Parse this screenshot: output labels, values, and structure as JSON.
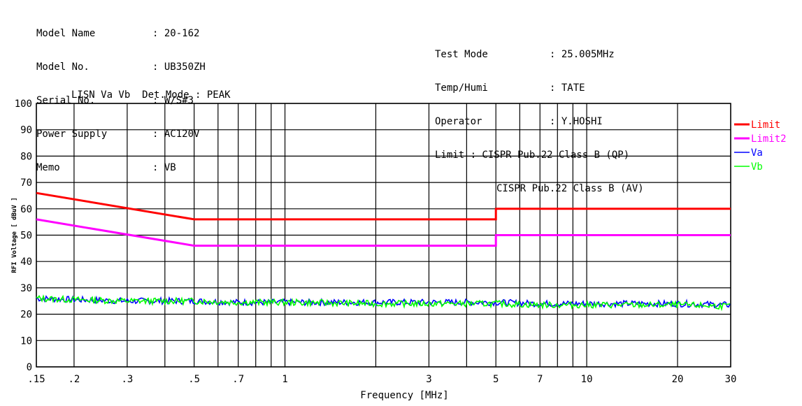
{
  "header": {
    "left": [
      {
        "label": "Model Name",
        "value": ": 20-162"
      },
      {
        "label": "Model No.",
        "value": ": UB350ZH"
      },
      {
        "label": "Serial No.",
        "value": ": W/S#3"
      },
      {
        "label": "Power Supply",
        "value": ": AC120V"
      },
      {
        "label": "Memo",
        "value": ": VB"
      }
    ],
    "right": [
      {
        "label": "Test Mode",
        "value": ": 25.005MHz"
      },
      {
        "label": "Temp/Humi",
        "value": ": TATE"
      },
      {
        "label": "Operator",
        "value": ": Y.HOSHI"
      }
    ],
    "lisn_line": "LISN Va Vb  Det.Mode : PEAK",
    "limit_line1": "Limit : CISPR Pub.22 Class B (QP)",
    "limit_line2": "CISPR Pub.22 Class B (AV)"
  },
  "chart_data": {
    "type": "line",
    "xlabel": "Frequency [MHz]",
    "ylabel": "RFI Voltage [ dBuV ]",
    "x_scale": "log",
    "xlim": [
      0.15,
      30
    ],
    "ylim": [
      0,
      100
    ],
    "grid": true,
    "legend_position": "right",
    "x_tick_labels": [
      ".15",
      ".2",
      ".3",
      ".5",
      ".7",
      "1",
      "3",
      "5",
      "7",
      "10",
      "20",
      "30"
    ],
    "x_tick_values": [
      0.15,
      0.2,
      0.3,
      0.5,
      0.7,
      1,
      3,
      5,
      7,
      10,
      20,
      30
    ],
    "x_minor_grid": [
      0.4,
      0.6,
      0.8,
      0.9,
      2,
      4,
      6,
      8,
      9
    ],
    "y_ticks": [
      0,
      10,
      20,
      30,
      40,
      50,
      60,
      70,
      80,
      90,
      100
    ],
    "series": [
      {
        "name": "Limit",
        "color": "#ff0000",
        "x": [
          0.15,
          0.5,
          5,
          5,
          30
        ],
        "y": [
          66,
          56,
          56,
          60,
          60
        ]
      },
      {
        "name": "Limit2",
        "color": "#ff00ff",
        "x": [
          0.15,
          0.5,
          5,
          5,
          30
        ],
        "y": [
          56,
          46,
          46,
          50,
          50
        ]
      },
      {
        "name": "Va",
        "color": "#0000ff",
        "x": [
          0.15,
          0.2,
          0.3,
          0.5,
          0.7,
          1,
          2,
          3,
          5,
          7,
          10,
          20,
          30
        ],
        "y": [
          26,
          25.5,
          25,
          25,
          24.5,
          24.5,
          24.5,
          24.5,
          24.5,
          24,
          24,
          24,
          23.5
        ]
      },
      {
        "name": "Vb",
        "color": "#00ff00",
        "x": [
          0.15,
          0.2,
          0.3,
          0.5,
          0.7,
          1,
          2,
          3,
          5,
          7,
          10,
          20,
          30
        ],
        "y": [
          26,
          25.5,
          25,
          25,
          24.5,
          24.5,
          24,
          24,
          24,
          23.5,
          23.5,
          23.5,
          23
        ]
      }
    ]
  }
}
